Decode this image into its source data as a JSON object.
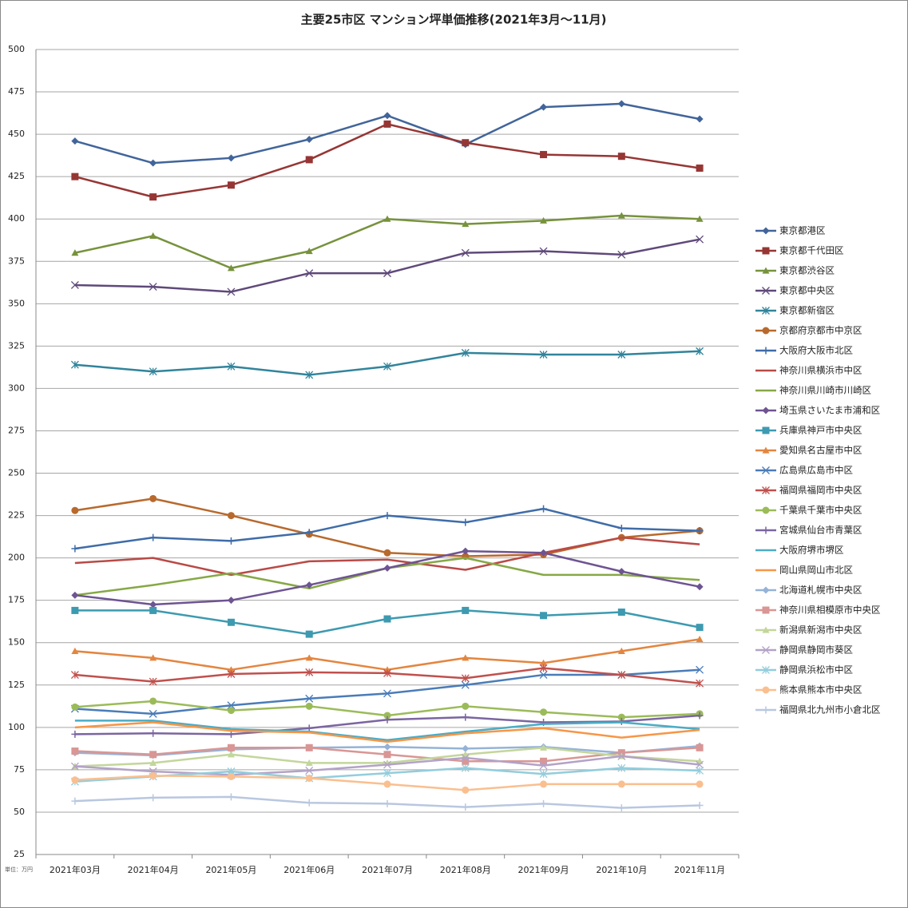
{
  "chart_data": {
    "type": "line",
    "title": "主要25市区 マンション坪単価推移(2021年3月～11月)",
    "unit_note": "単位：万円",
    "categories": [
      "2021年03月",
      "2021年04月",
      "2021年05月",
      "2021年06月",
      "2021年07月",
      "2021年08月",
      "2021年09月",
      "2021年10月",
      "2021年11月"
    ],
    "ylim": [
      25,
      500
    ],
    "yticks": [
      25,
      50,
      75,
      100,
      125,
      150,
      175,
      200,
      225,
      250,
      275,
      300,
      325,
      350,
      375,
      400,
      425,
      450,
      475,
      500
    ],
    "grid": true,
    "legend": "right",
    "series": [
      {
        "name": "東京都港区",
        "color": "#41659a",
        "marker": "diamond",
        "values": [
          446,
          433,
          436,
          447,
          461,
          444,
          466,
          468,
          459
        ]
      },
      {
        "name": "東京都千代田区",
        "color": "#963634",
        "marker": "square",
        "values": [
          425,
          413,
          420,
          435,
          456,
          445,
          438,
          437,
          430
        ]
      },
      {
        "name": "東京都渋谷区",
        "color": "#76923c",
        "marker": "triangle",
        "values": [
          380,
          390,
          371,
          381,
          400,
          397,
          399,
          402,
          400
        ]
      },
      {
        "name": "東京都中央区",
        "color": "#5f497a",
        "marker": "x",
        "values": [
          361,
          360,
          357,
          368,
          368,
          380,
          381,
          379,
          388
        ]
      },
      {
        "name": "東京都新宿区",
        "color": "#31849b",
        "marker": "star",
        "values": [
          314,
          310,
          313,
          308,
          313,
          321,
          320,
          320,
          322
        ]
      },
      {
        "name": "京都府京都市中京区",
        "color": "#b8692d",
        "marker": "circle",
        "values": [
          228,
          235,
          225,
          214,
          203,
          201,
          202,
          212,
          216
        ]
      },
      {
        "name": "大阪府大阪市北区",
        "color": "#3f6ca8",
        "marker": "plus",
        "values": [
          205.5,
          212,
          210,
          215,
          225,
          221,
          229,
          217.5,
          216
        ]
      },
      {
        "name": "神奈川県横浜市中区",
        "color": "#b94a46",
        "marker": "none",
        "values": [
          197,
          200,
          190,
          198,
          199,
          193,
          203,
          212,
          208
        ]
      },
      {
        "name": "神奈川県川崎市川崎区",
        "color": "#86a845",
        "marker": "none",
        "values": [
          178,
          184,
          191,
          182,
          194,
          200,
          190,
          190,
          187
        ]
      },
      {
        "name": "埼玉県さいたま市浦和区",
        "color": "#6e5492",
        "marker": "diamond",
        "values": [
          178,
          172.5,
          175,
          184,
          194,
          204,
          203,
          192,
          183
        ]
      },
      {
        "name": "兵庫県神戸市中央区",
        "color": "#3d9ab0",
        "marker": "square",
        "values": [
          169,
          169,
          162,
          155,
          164,
          169,
          166,
          168,
          159
        ]
      },
      {
        "name": "愛知県名古屋市中区",
        "color": "#e4853f",
        "marker": "triangle",
        "values": [
          145,
          141,
          134,
          141,
          134,
          141,
          138,
          145,
          152
        ]
      },
      {
        "name": "広島県広島市中区",
        "color": "#4a7cb8",
        "marker": "x",
        "values": [
          111,
          108,
          113,
          117,
          120,
          125,
          131,
          131,
          134
        ]
      },
      {
        "name": "福岡県福岡市中央区",
        "color": "#c0504d",
        "marker": "star",
        "values": [
          131,
          127,
          131.5,
          132.5,
          132,
          129,
          135,
          131,
          126
        ]
      },
      {
        "name": "千葉県千葉市中央区",
        "color": "#9bbb59",
        "marker": "circle",
        "values": [
          112,
          115.5,
          110,
          112.5,
          107,
          112.5,
          109,
          106,
          108
        ]
      },
      {
        "name": "宮城県仙台市青葉区",
        "color": "#7b65a0",
        "marker": "plus",
        "values": [
          96,
          96.5,
          96,
          99.5,
          104.5,
          106,
          103,
          103.5,
          107
        ]
      },
      {
        "name": "大阪府堺市堺区",
        "color": "#4bacc6",
        "marker": "none",
        "values": [
          104,
          104,
          99,
          97.5,
          92.5,
          97.5,
          102,
          103,
          99
        ]
      },
      {
        "name": "岡山県岡山市北区",
        "color": "#f79646",
        "marker": "none",
        "values": [
          100,
          103,
          98,
          97,
          91.5,
          96.5,
          99.5,
          94,
          98.5
        ]
      },
      {
        "name": "北海道札幌市中央区",
        "color": "#95b3d7",
        "marker": "diamond",
        "values": [
          85,
          83.5,
          87,
          88,
          88.5,
          87.5,
          88.5,
          85,
          89
        ]
      },
      {
        "name": "神奈川県相模原市中央区",
        "color": "#d99694",
        "marker": "square",
        "values": [
          86,
          84,
          88,
          88,
          84,
          80,
          80,
          85,
          88
        ]
      },
      {
        "name": "新潟県新潟市中央区",
        "color": "#c3d69b",
        "marker": "triangle",
        "values": [
          77,
          79,
          84,
          79,
          79,
          84,
          88,
          83,
          80
        ]
      },
      {
        "name": "静岡県静岡市葵区",
        "color": "#b3a2c7",
        "marker": "x",
        "values": [
          77,
          74,
          72,
          74.5,
          78,
          82,
          77.5,
          83,
          78
        ]
      },
      {
        "name": "静岡県浜松市中区",
        "color": "#93cddd",
        "marker": "star",
        "values": [
          68,
          71,
          74,
          70,
          73,
          76,
          72.5,
          76,
          74.5
        ]
      },
      {
        "name": "熊本県熊本市中央区",
        "color": "#fabf8f",
        "marker": "circle",
        "values": [
          69,
          71.5,
          71,
          70,
          66.5,
          63,
          66.5,
          66.5,
          66.5
        ]
      },
      {
        "name": "福岡県北九州市小倉北区",
        "color": "#b9c7e0",
        "marker": "plus",
        "values": [
          56.5,
          58.5,
          59,
          55.5,
          55,
          53,
          55,
          52.5,
          54
        ]
      }
    ]
  }
}
